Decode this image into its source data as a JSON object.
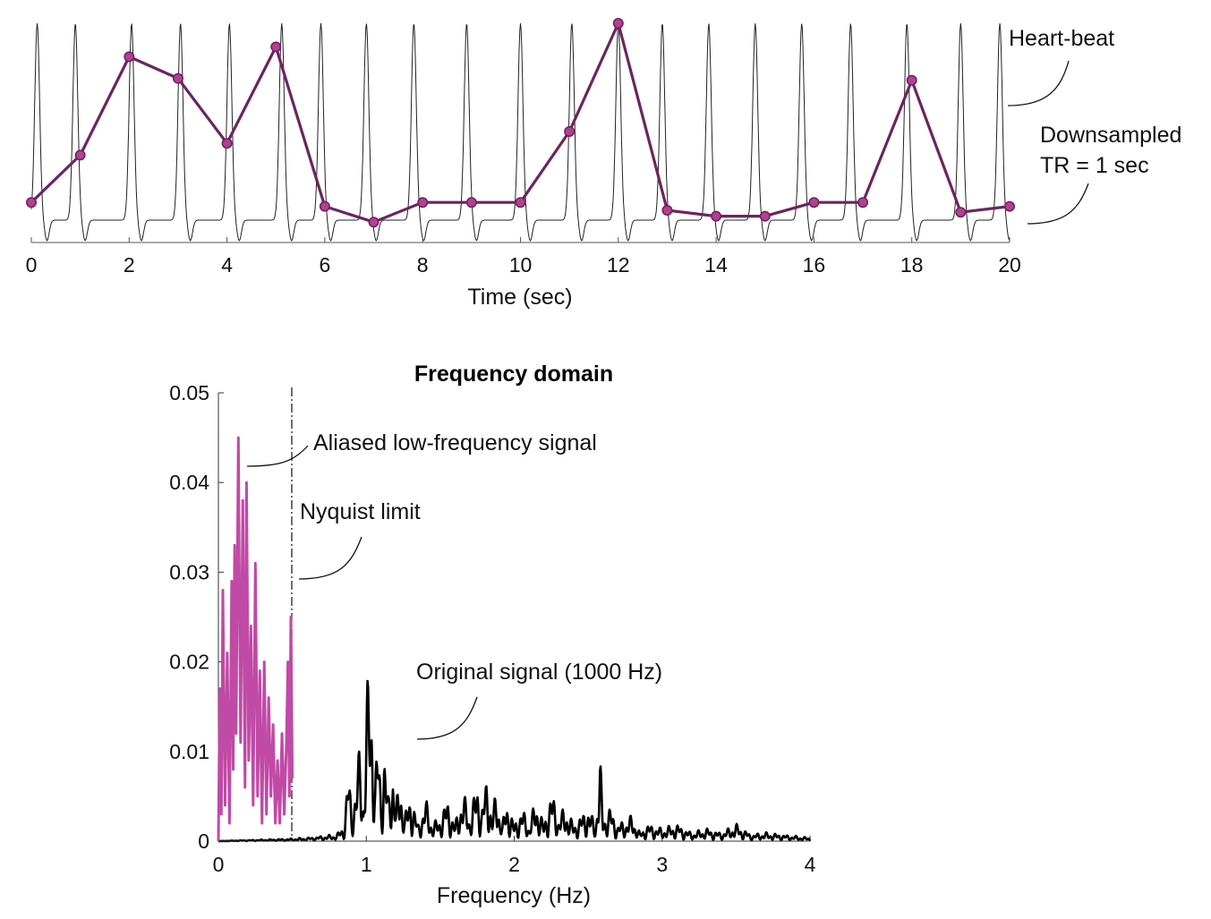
{
  "chart_data": [
    {
      "type": "line",
      "title": "",
      "xlabel": "Time (sec)",
      "ylabel": "",
      "xlim": [
        0,
        20
      ],
      "xticks": [
        "0",
        "2",
        "4",
        "6",
        "8",
        "10",
        "12",
        "14",
        "16",
        "18",
        "20"
      ],
      "grid": false,
      "heartbeat": {
        "peaks_t": [
          0.12,
          0.9,
          2.05,
          3.05,
          4.05,
          5.12,
          5.92,
          6.85,
          7.82,
          8.9,
          10.0,
          11.05,
          12.0,
          12.9,
          13.85,
          14.8,
          15.75,
          16.75,
          17.9,
          19.0,
          19.8
        ]
      },
      "series": [
        {
          "x": [
            0,
            1,
            2,
            3,
            4,
            5,
            6,
            7,
            8,
            9,
            10,
            11,
            12,
            13,
            14,
            15,
            16,
            17,
            18,
            19,
            20
          ],
          "values": [
            0.09,
            0.33,
            0.83,
            0.72,
            0.39,
            0.88,
            0.07,
            -0.01,
            0.09,
            0.09,
            0.09,
            0.45,
            1.0,
            0.05,
            0.02,
            0.02,
            0.09,
            0.09,
            0.71,
            0.04,
            0.07
          ],
          "color": "#6b2560",
          "marker_color": "#b5408f"
        }
      ],
      "annotations": [
        {
          "text": "Heart-beat"
        },
        {
          "text": "Downsampled"
        },
        {
          "text": "TR = 1 sec"
        }
      ]
    },
    {
      "type": "line",
      "title": "Frequency domain",
      "xlabel": "Frequency (Hz)",
      "ylabel": "",
      "xlim": [
        0,
        4
      ],
      "ylim": [
        0,
        0.05
      ],
      "xticks": [
        "0",
        "1",
        "2",
        "3",
        "4"
      ],
      "yticks": [
        "0",
        "0.01",
        "0.02",
        "0.03",
        "0.04",
        "0.05"
      ],
      "grid": false,
      "nyquist_hz": 0.5,
      "series": [
        {
          "color": "#c04aa6",
          "peaks": [
            [
              0.0,
              0.0
            ],
            [
              0.01,
              0.017
            ],
            [
              0.02,
              0.003
            ],
            [
              0.03,
              0.028
            ],
            [
              0.045,
              0.004
            ],
            [
              0.06,
              0.021
            ],
            [
              0.075,
              0.002
            ],
            [
              0.09,
              0.029
            ],
            [
              0.1,
              0.008
            ],
            [
              0.11,
              0.033
            ],
            [
              0.12,
              0.012
            ],
            [
              0.135,
              0.045
            ],
            [
              0.15,
              0.011
            ],
            [
              0.165,
              0.038
            ],
            [
              0.18,
              0.006
            ],
            [
              0.19,
              0.04
            ],
            [
              0.205,
              0.009
            ],
            [
              0.22,
              0.024
            ],
            [
              0.235,
              0.004
            ],
            [
              0.25,
              0.031
            ],
            [
              0.265,
              0.005
            ],
            [
              0.28,
              0.019
            ],
            [
              0.295,
              0.002
            ],
            [
              0.31,
              0.02
            ],
            [
              0.325,
              0.003
            ],
            [
              0.34,
              0.016
            ],
            [
              0.355,
              0.005
            ],
            [
              0.37,
              0.013
            ],
            [
              0.385,
              0.002
            ],
            [
              0.4,
              0.009
            ],
            [
              0.415,
              0.002
            ],
            [
              0.43,
              0.012
            ],
            [
              0.445,
              0.003
            ],
            [
              0.46,
              0.011
            ],
            [
              0.47,
              0.02
            ],
            [
              0.48,
              0.005
            ],
            [
              0.49,
              0.025
            ],
            [
              0.5,
              0.007
            ]
          ]
        },
        {
          "color": "#000000",
          "peaks": [
            [
              0.0,
              0.0
            ],
            [
              0.5,
              0.0003
            ],
            [
              0.6,
              0.0004
            ],
            [
              0.7,
              0.0006
            ],
            [
              0.8,
              0.0008
            ],
            [
              0.85,
              0.002
            ],
            [
              0.88,
              0.009
            ],
            [
              0.9,
              0.004
            ],
            [
              0.93,
              0.007
            ],
            [
              0.96,
              0.012
            ],
            [
              0.98,
              0.005
            ],
            [
              1.0,
              0.016
            ],
            [
              1.02,
              0.021
            ],
            [
              1.04,
              0.018
            ],
            [
              1.06,
              0.008
            ],
            [
              1.08,
              0.013
            ],
            [
              1.1,
              0.006
            ],
            [
              1.12,
              0.012
            ],
            [
              1.15,
              0.005
            ],
            [
              1.18,
              0.01
            ],
            [
              1.2,
              0.004
            ],
            [
              1.23,
              0.008
            ],
            [
              1.26,
              0.003
            ],
            [
              1.3,
              0.006
            ],
            [
              1.35,
              0.002
            ],
            [
              1.4,
              0.005
            ],
            [
              1.45,
              0.002
            ],
            [
              1.5,
              0.003
            ],
            [
              1.55,
              0.005
            ],
            [
              1.6,
              0.002
            ],
            [
              1.65,
              0.006
            ],
            [
              1.7,
              0.003
            ],
            [
              1.75,
              0.007
            ],
            [
              1.78,
              0.004
            ],
            [
              1.82,
              0.008
            ],
            [
              1.85,
              0.003
            ],
            [
              1.88,
              0.006
            ],
            [
              1.92,
              0.002
            ],
            [
              1.95,
              0.005
            ],
            [
              2.0,
              0.002
            ],
            [
              2.05,
              0.004
            ],
            [
              2.1,
              0.002
            ],
            [
              2.15,
              0.005
            ],
            [
              2.2,
              0.002
            ],
            [
              2.25,
              0.006
            ],
            [
              2.3,
              0.003
            ],
            [
              2.35,
              0.004
            ],
            [
              2.4,
              0.002
            ],
            [
              2.45,
              0.003
            ],
            [
              2.5,
              0.004
            ],
            [
              2.55,
              0.002
            ],
            [
              2.58,
              0.01
            ],
            [
              2.6,
              0.003
            ],
            [
              2.65,
              0.004
            ],
            [
              2.7,
              0.002
            ],
            [
              2.8,
              0.003
            ],
            [
              2.85,
              0.001
            ],
            [
              2.9,
              0.002
            ],
            [
              3.0,
              0.0015
            ],
            [
              3.1,
              0.002
            ],
            [
              3.2,
              0.001
            ],
            [
              3.3,
              0.0015
            ],
            [
              3.4,
              0.001
            ],
            [
              3.5,
              0.002
            ],
            [
              3.6,
              0.0008
            ],
            [
              3.7,
              0.001
            ],
            [
              3.8,
              0.0008
            ],
            [
              3.9,
              0.0006
            ],
            [
              4.0,
              0.0004
            ]
          ]
        }
      ],
      "annotations": [
        {
          "text": "Aliased low-frequency signal"
        },
        {
          "text": "Nyquist limit"
        },
        {
          "text": "Original signal (1000 Hz)"
        }
      ]
    }
  ]
}
